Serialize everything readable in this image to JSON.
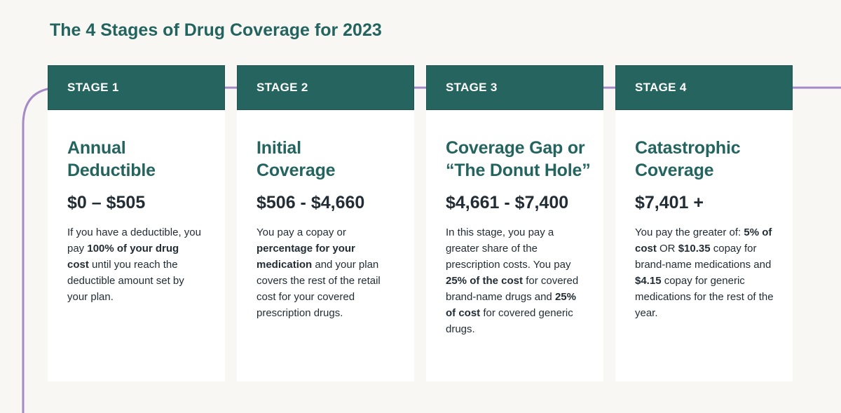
{
  "page": {
    "title": "The 4 Stages of Drug Coverage for 2023"
  },
  "colors": {
    "background": "#f8f7f3",
    "header": "#266460",
    "title_green": "#24645f",
    "text_dark": "#232d35",
    "connector": "#a58ac8"
  },
  "stages": [
    {
      "label": "STAGE 1",
      "title_line1": "Annual",
      "title_line2": "Deductible",
      "range": "$0 – $505",
      "desc": [
        {
          "text": "If you have a deductible, you pay ",
          "bold": false
        },
        {
          "text": "100% of your drug cost",
          "bold": true
        },
        {
          "text": " until you reach the deductible amount set by your plan.",
          "bold": false
        }
      ]
    },
    {
      "label": "STAGE 2",
      "title_line1": "Initial",
      "title_line2": "Coverage",
      "range": "$506 - $4,660",
      "desc": [
        {
          "text": "You pay a copay or ",
          "bold": false
        },
        {
          "text": "percentage for your medication",
          "bold": true
        },
        {
          "text": " and your plan covers the rest of the retail cost for your covered prescription drugs.",
          "bold": false
        }
      ]
    },
    {
      "label": "STAGE 3",
      "title_line1": "Coverage Gap or",
      "title_line2": "“The Donut Hole”",
      "range": "$4,661 - $7,400",
      "desc": [
        {
          "text": "In this stage, you pay a greater share of the prescription costs. You pay ",
          "bold": false
        },
        {
          "text": "25% of the cost",
          "bold": true
        },
        {
          "text": " for covered brand-name drugs and ",
          "bold": false
        },
        {
          "text": "25% of cost",
          "bold": true
        },
        {
          "text": " for covered generic drugs.",
          "bold": false
        }
      ]
    },
    {
      "label": "STAGE 4",
      "title_line1": "Catastrophic",
      "title_line2": "Coverage",
      "range": "$7,401 +",
      "desc": [
        {
          "text": "You pay the greater of: ",
          "bold": false
        },
        {
          "text": "5% of cost",
          "bold": true
        },
        {
          "text": " OR ",
          "bold": false
        },
        {
          "text": "$10.35",
          "bold": true
        },
        {
          "text": " copay for brand-name medications and ",
          "bold": false
        },
        {
          "text": "$4.15",
          "bold": true
        },
        {
          "text": " copay for generic medications for the rest  of the year.",
          "bold": false
        }
      ]
    }
  ]
}
